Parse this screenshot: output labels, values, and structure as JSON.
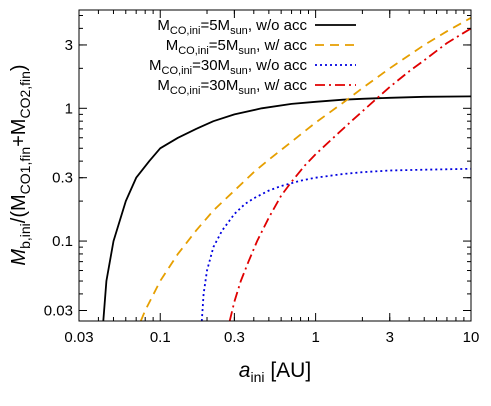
{
  "chart_data": {
    "type": "line",
    "title": "",
    "x_scale": "log",
    "y_scale": "log",
    "xlim": [
      0.03,
      10
    ],
    "ylim": [
      0.025,
      5.5
    ],
    "grid": false,
    "legend_position": "top-right",
    "xlabel": {
      "main": "a",
      "sub": "ini",
      "unit": " [AU]"
    },
    "ylabel": {
      "main": "M",
      "sub": "b,ini",
      "mid": "/(M",
      "sub2": "CO1,fin",
      "plus": "+M",
      "sub3": "CO2,fin",
      "close": ")"
    },
    "x_ticks": [
      {
        "value": 0.03,
        "label": "0.03"
      },
      {
        "value": 0.1,
        "label": "0.1"
      },
      {
        "value": 0.3,
        "label": "0.3"
      },
      {
        "value": 1,
        "label": "1"
      },
      {
        "value": 3,
        "label": "3"
      },
      {
        "value": 10,
        "label": "10"
      }
    ],
    "y_ticks": [
      {
        "value": 0.03,
        "label": "0.03"
      },
      {
        "value": 0.1,
        "label": "0.1"
      },
      {
        "value": 0.3,
        "label": "0.3"
      },
      {
        "value": 1,
        "label": "1"
      },
      {
        "value": 3,
        "label": "3"
      }
    ],
    "series": [
      {
        "name": "5Msun, w/o acc",
        "legend": {
          "pre": "M",
          "sub": "CO,ini",
          "mid": "=5M",
          "sub2": "sun",
          "post": ", w/o acc"
        },
        "color": "#000000",
        "dash": "none",
        "points": [
          [
            0.043,
            0.025
          ],
          [
            0.045,
            0.05
          ],
          [
            0.05,
            0.1
          ],
          [
            0.06,
            0.2
          ],
          [
            0.07,
            0.3
          ],
          [
            0.085,
            0.4
          ],
          [
            0.1,
            0.5
          ],
          [
            0.13,
            0.6
          ],
          [
            0.17,
            0.7
          ],
          [
            0.22,
            0.8
          ],
          [
            0.3,
            0.9
          ],
          [
            0.45,
            1.0
          ],
          [
            0.7,
            1.08
          ],
          [
            1.0,
            1.12
          ],
          [
            1.5,
            1.16
          ],
          [
            2.0,
            1.18
          ],
          [
            3.0,
            1.2
          ],
          [
            5.0,
            1.22
          ],
          [
            10,
            1.23
          ]
        ]
      },
      {
        "name": "5Msun, w/ acc",
        "legend": {
          "pre": "M",
          "sub": "CO,ini",
          "mid": "=5M",
          "sub2": "sun",
          "post": ", w/ acc"
        },
        "color": "#e69f00",
        "dash": "9,6",
        "points": [
          [
            0.075,
            0.025
          ],
          [
            0.08,
            0.03
          ],
          [
            0.1,
            0.05
          ],
          [
            0.13,
            0.08
          ],
          [
            0.17,
            0.12
          ],
          [
            0.22,
            0.17
          ],
          [
            0.3,
            0.24
          ],
          [
            0.4,
            0.33
          ],
          [
            0.5,
            0.41
          ],
          [
            0.7,
            0.56
          ],
          [
            1.0,
            0.78
          ],
          [
            1.5,
            1.1
          ],
          [
            2.0,
            1.42
          ],
          [
            3.0,
            2.0
          ],
          [
            5.0,
            3.0
          ],
          [
            7.0,
            3.8
          ],
          [
            10,
            4.8
          ]
        ]
      },
      {
        "name": "30Msun, w/o acc",
        "legend": {
          "pre": "M",
          "sub": "CO,ini",
          "mid": "=30M",
          "sub2": "sun",
          "post": ", w/o acc"
        },
        "color": "#0000e0",
        "dash": "2,3",
        "points": [
          [
            0.185,
            0.025
          ],
          [
            0.19,
            0.04
          ],
          [
            0.2,
            0.06
          ],
          [
            0.22,
            0.09
          ],
          [
            0.25,
            0.12
          ],
          [
            0.3,
            0.16
          ],
          [
            0.35,
            0.19
          ],
          [
            0.4,
            0.21
          ],
          [
            0.5,
            0.24
          ],
          [
            0.6,
            0.26
          ],
          [
            0.8,
            0.285
          ],
          [
            1.0,
            0.3
          ],
          [
            1.5,
            0.32
          ],
          [
            2.0,
            0.33
          ],
          [
            3.0,
            0.34
          ],
          [
            5.0,
            0.345
          ],
          [
            10,
            0.35
          ]
        ]
      },
      {
        "name": "30Msun, w/ acc",
        "legend": {
          "pre": "M",
          "sub": "CO,ini",
          "mid": "=30M",
          "sub2": "sun",
          "post": ", w/ acc"
        },
        "color": "#e00000",
        "dash": "10,4,2,4",
        "points": [
          [
            0.28,
            0.025
          ],
          [
            0.3,
            0.035
          ],
          [
            0.33,
            0.05
          ],
          [
            0.37,
            0.07
          ],
          [
            0.42,
            0.1
          ],
          [
            0.5,
            0.15
          ],
          [
            0.6,
            0.22
          ],
          [
            0.7,
            0.28
          ],
          [
            0.85,
            0.37
          ],
          [
            1.0,
            0.45
          ],
          [
            1.3,
            0.6
          ],
          [
            1.7,
            0.8
          ],
          [
            2.0,
            0.95
          ],
          [
            3.0,
            1.45
          ],
          [
            4.0,
            1.9
          ],
          [
            5.0,
            2.3
          ],
          [
            7.0,
            3.1
          ],
          [
            10,
            4.0
          ]
        ]
      }
    ]
  }
}
